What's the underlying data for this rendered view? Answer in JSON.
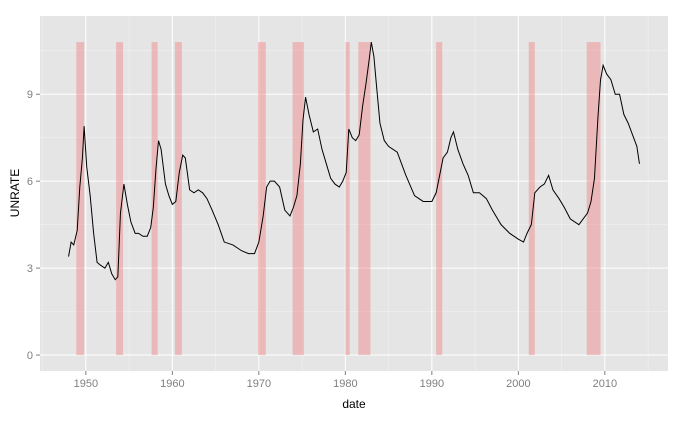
{
  "chart_data": {
    "type": "line",
    "xlabel": "date",
    "ylabel": "UNRATE",
    "xlim": [
      1944.7,
      2017.3
    ],
    "ylim": [
      -0.55,
      11.7
    ],
    "x_ticks": [
      1950,
      1960,
      1970,
      1980,
      1990,
      2000,
      2010
    ],
    "x_tick_labels": [
      "1950",
      "1960",
      "1970",
      "1980",
      "1990",
      "2000",
      "2010"
    ],
    "y_ticks": [
      0,
      3,
      6,
      9
    ],
    "y_tick_labels": [
      "0",
      "3",
      "6",
      "9"
    ],
    "grid": true,
    "colors": {
      "panel": "#e5e5e5",
      "grid": "#ffffff",
      "line": "#000000",
      "recession": "#f08080"
    },
    "recessions": [
      {
        "start": 1948.9,
        "end": 1949.8
      },
      {
        "start": 1953.5,
        "end": 1954.3
      },
      {
        "start": 1957.6,
        "end": 1958.3
      },
      {
        "start": 1960.3,
        "end": 1961.1
      },
      {
        "start": 1969.9,
        "end": 1970.8
      },
      {
        "start": 1973.9,
        "end": 1975.2
      },
      {
        "start": 1980.0,
        "end": 1980.5
      },
      {
        "start": 1981.5,
        "end": 1982.9
      },
      {
        "start": 1990.5,
        "end": 1991.2
      },
      {
        "start": 2001.2,
        "end": 2001.9
      },
      {
        "start": 2007.9,
        "end": 2009.5
      }
    ],
    "series": [
      {
        "x": [
          1948.0,
          1948.3,
          1948.6,
          1949.0,
          1949.3,
          1949.6,
          1949.8,
          1950.1,
          1950.5,
          1950.9,
          1951.3,
          1951.7,
          1952.2,
          1952.6,
          1953.0,
          1953.4,
          1953.7,
          1954.0,
          1954.4,
          1954.8,
          1955.2,
          1955.7,
          1956.1,
          1956.6,
          1957.1,
          1957.5,
          1957.8,
          1958.1,
          1958.4,
          1958.7,
          1959.2,
          1959.6,
          1960.0,
          1960.4,
          1960.8,
          1961.2,
          1961.5,
          1962.0,
          1962.5,
          1963.0,
          1963.5,
          1964.0,
          1964.6,
          1965.3,
          1966.0,
          1967.0,
          1968.0,
          1968.8,
          1969.5,
          1970.0,
          1970.5,
          1970.9,
          1971.3,
          1971.8,
          1972.4,
          1973.0,
          1973.6,
          1974.0,
          1974.4,
          1974.8,
          1975.1,
          1975.4,
          1975.8,
          1976.3,
          1976.8,
          1977.3,
          1977.8,
          1978.3,
          1978.8,
          1979.3,
          1979.7,
          1980.1,
          1980.4,
          1980.8,
          1981.2,
          1981.6,
          1982.0,
          1982.4,
          1982.8,
          1983.0,
          1983.3,
          1983.6,
          1984.0,
          1984.5,
          1985.0,
          1986.0,
          1987.0,
          1988.0,
          1989.0,
          1990.0,
          1990.5,
          1990.9,
          1991.3,
          1991.8,
          1992.2,
          1992.5,
          1993.0,
          1993.6,
          1994.2,
          1994.8,
          1995.5,
          1996.3,
          1997.0,
          1998.0,
          1999.0,
          2000.0,
          2000.6,
          2001.0,
          2001.5,
          2001.9,
          2002.5,
          2003.0,
          2003.5,
          2004.0,
          2004.7,
          2005.3,
          2006.0,
          2007.0,
          2007.5,
          2008.0,
          2008.4,
          2008.8,
          2009.2,
          2009.5,
          2009.8,
          2010.2,
          2010.7,
          2011.2,
          2011.7,
          2012.2,
          2012.7,
          2013.2,
          2013.7,
          2014.0
        ],
        "values": [
          3.4,
          3.9,
          3.8,
          4.3,
          5.8,
          6.8,
          7.9,
          6.5,
          5.5,
          4.2,
          3.2,
          3.1,
          3.0,
          3.2,
          2.8,
          2.6,
          2.7,
          4.9,
          5.9,
          5.2,
          4.6,
          4.2,
          4.2,
          4.1,
          4.1,
          4.4,
          5.1,
          6.4,
          7.4,
          7.1,
          5.9,
          5.5,
          5.2,
          5.3,
          6.3,
          6.9,
          6.8,
          5.7,
          5.6,
          5.7,
          5.6,
          5.4,
          5.0,
          4.5,
          3.9,
          3.8,
          3.6,
          3.5,
          3.5,
          3.9,
          4.8,
          5.8,
          6.0,
          6.0,
          5.8,
          5.0,
          4.8,
          5.1,
          5.5,
          6.6,
          8.1,
          8.9,
          8.3,
          7.7,
          7.8,
          7.1,
          6.6,
          6.1,
          5.9,
          5.8,
          6.0,
          6.3,
          7.8,
          7.5,
          7.4,
          7.6,
          8.6,
          9.4,
          10.3,
          10.8,
          10.3,
          9.3,
          8.0,
          7.4,
          7.2,
          7.0,
          6.2,
          5.5,
          5.3,
          5.3,
          5.6,
          6.2,
          6.8,
          7.0,
          7.5,
          7.7,
          7.1,
          6.6,
          6.2,
          5.6,
          5.6,
          5.4,
          5.0,
          4.5,
          4.2,
          4.0,
          3.9,
          4.2,
          4.5,
          5.6,
          5.8,
          5.9,
          6.2,
          5.7,
          5.4,
          5.1,
          4.7,
          4.5,
          4.7,
          4.9,
          5.3,
          6.1,
          8.2,
          9.5,
          10.0,
          9.7,
          9.5,
          9.0,
          9.0,
          8.3,
          8.0,
          7.6,
          7.2,
          6.6
        ]
      }
    ]
  }
}
